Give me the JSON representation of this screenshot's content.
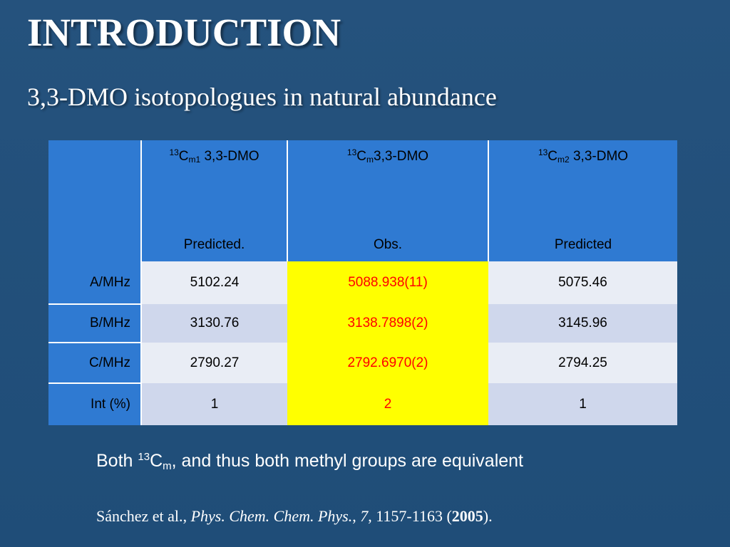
{
  "slide": {
    "title": "INTRODUCTION",
    "subtitle": "3,3-DMO isotopologues in natural abundance"
  },
  "table": {
    "columns": [
      {
        "sup": "13",
        "base": "C",
        "sub": "m1",
        "suffix": " 3,3-DMO",
        "note": "Predicted."
      },
      {
        "sup": "13",
        "base": "C",
        "sub": "m",
        "suffix": "3,3-DMO",
        "note": "Obs."
      },
      {
        "sup": "13",
        "base": "C",
        "sub": "m2",
        "suffix": " 3,3-DMO",
        "note": "Predicted"
      }
    ],
    "rows": [
      {
        "label": "A/MHz",
        "values": [
          "5102.24",
          "5088.938(11)",
          "5075.46"
        ]
      },
      {
        "label": "B/MHz",
        "values": [
          "3130.76",
          "3138.7898(2)",
          "3145.96"
        ]
      },
      {
        "label": "C/MHz",
        "values": [
          "2790.27",
          "2792.6970(2)",
          "2794.25"
        ]
      },
      {
        "label": "Int (%)",
        "values": [
          "1",
          "2",
          "1"
        ]
      }
    ],
    "highlight_color": "#ffff00",
    "highlight_text_color": "#ff0000",
    "header_color": "#2f7ad2"
  },
  "note": {
    "prefix": "Both ",
    "sup": "13",
    "base": "C",
    "sub": "m",
    "suffix": ", and thus both methyl groups are equivalent"
  },
  "reference": {
    "authors": "Sánchez et al.",
    "sep1": ", ",
    "journal": "Phys. Chem. Chem. Phys.",
    "sep2": ", ",
    "volume": "7",
    "pages": ", 1157-1163 (",
    "year": "2005",
    "end": ")."
  }
}
